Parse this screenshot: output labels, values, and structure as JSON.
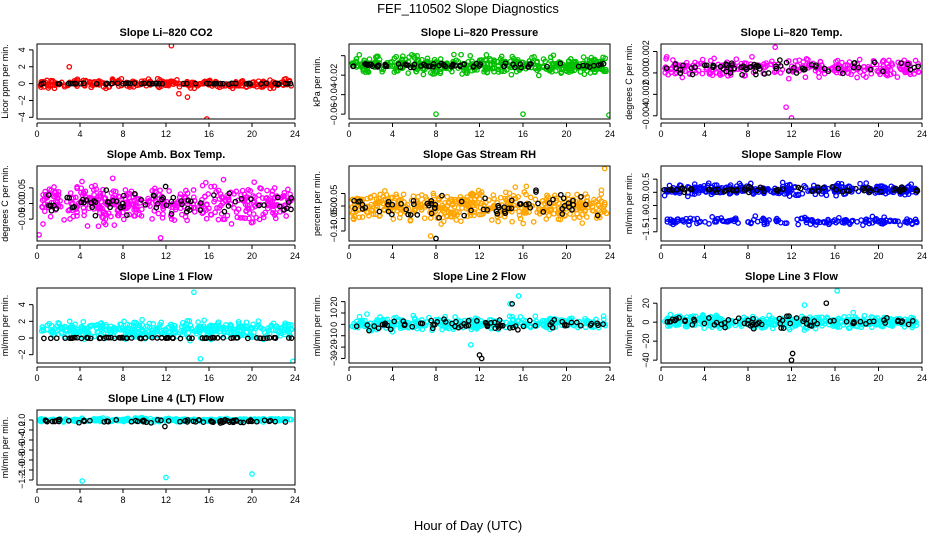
{
  "page": {
    "title": "FEF_110502  Slope Diagnostics",
    "xlabel": "Hour of Day (UTC)"
  },
  "chart_data": [
    {
      "type": "scatter",
      "title": "Slope Li–820 CO2",
      "ylabel": "Licor ppm per min.",
      "xlim": [
        0,
        24
      ],
      "ylim": [
        -4.2,
        4.7
      ],
      "xticks": [
        0,
        4,
        8,
        12,
        16,
        20,
        24
      ],
      "yticks": [
        -4,
        -2,
        0,
        2,
        4
      ],
      "ytick_labels": [
        "−4",
        "−2",
        "0",
        "2",
        "4"
      ],
      "series": [
        {
          "color": "#ff0000",
          "base": 0,
          "spread": 0.45,
          "count": 260,
          "outliers": [
            [
              3.0,
              2.0
            ],
            [
              12.5,
              4.5
            ],
            [
              13.2,
              -1.2
            ],
            [
              14.0,
              -1.6
            ],
            [
              15.8,
              -4.2
            ]
          ]
        },
        {
          "color": "#000000",
          "base": 0,
          "spread": 0.05,
          "count": 60,
          "outliers": []
        }
      ]
    },
    {
      "type": "scatter",
      "title": "Slope Li–820 Pressure",
      "ylabel": "kPa per min.",
      "xlim": [
        0,
        24
      ],
      "ylim": [
        -0.065,
        0.012
      ],
      "xticks": [
        0,
        4,
        8,
        12,
        16,
        20,
        24
      ],
      "yticks": [
        -0.06,
        -0.04,
        -0.02,
        0.0
      ],
      "ytick_labels": [
        "−0.06",
        "−0.04",
        "−0.02",
        ""
      ],
      "series": [
        {
          "color": "#00c000",
          "base": -0.01,
          "spread": 0.008,
          "count": 420,
          "outliers": [
            [
              8.0,
              -0.06
            ],
            [
              16.0,
              -0.06
            ],
            [
              23.9,
              -0.061
            ]
          ]
        },
        {
          "color": "#000000",
          "base": -0.01,
          "spread": 0.002,
          "count": 70,
          "outliers": []
        }
      ]
    },
    {
      "type": "scatter",
      "title": "Slope Li–820 Temp.",
      "ylabel": "degrees C per min.",
      "xlim": [
        0,
        24
      ],
      "ylim": [
        -0.0043,
        0.0027
      ],
      "xticks": [
        0,
        4,
        8,
        12,
        16,
        20,
        24
      ],
      "yticks": [
        -0.004,
        -0.002,
        0.0,
        0.002
      ],
      "ytick_labels": [
        "−0.004",
        "−0.002",
        "0.000",
        "0.002"
      ],
      "series": [
        {
          "color": "#ff00ff",
          "base": 0.0005,
          "spread": 0.0008,
          "count": 260,
          "outliers": [
            [
              12.0,
              -0.0042
            ],
            [
              11.5,
              -0.0032
            ],
            [
              10.5,
              0.0024
            ]
          ]
        },
        {
          "color": "#000000",
          "base": 0.0005,
          "spread": 0.0006,
          "count": 70,
          "outliers": []
        }
      ]
    },
    {
      "type": "scatter",
      "title": "Slope Amb. Box Temp.",
      "ylabel": "degrees C per min.",
      "xlim": [
        0,
        24
      ],
      "ylim": [
        -0.12,
        0.12
      ],
      "xticks": [
        0,
        4,
        8,
        12,
        16,
        20,
        24
      ],
      "yticks": [
        -0.05,
        0.0,
        0.05
      ],
      "ytick_labels": [
        "−0.05",
        "0.00",
        "0.05"
      ],
      "series": [
        {
          "color": "#ff00ff",
          "base": 0,
          "spread": 0.05,
          "count": 420,
          "outliers": [
            [
              0.2,
              -0.1
            ],
            [
              11.5,
              -0.11
            ]
          ]
        },
        {
          "color": "#000000",
          "base": 0,
          "spread": 0.035,
          "count": 70,
          "outliers": []
        }
      ]
    },
    {
      "type": "scatter",
      "title": "Slope Gas Stream RH",
      "ylabel": "percent per min.",
      "xlim": [
        0,
        24
      ],
      "ylim": [
        -0.14,
        0.16
      ],
      "xticks": [
        0,
        4,
        8,
        12,
        16,
        20,
        24
      ],
      "yticks": [
        -0.1,
        -0.05,
        0.0,
        0.05
      ],
      "ytick_labels": [
        "−0.10",
        "−0.05",
        "0.00",
        "0.05"
      ],
      "series": [
        {
          "color": "#ffa500",
          "base": 0,
          "spread": 0.05,
          "count": 460,
          "outliers": [
            [
              23.5,
              0.15
            ],
            [
              7.5,
              -0.12
            ]
          ]
        },
        {
          "color": "#000000",
          "base": 0,
          "spread": 0.04,
          "count": 70,
          "outliers": [
            [
              8.0,
              -0.13
            ]
          ]
        }
      ]
    },
    {
      "type": "scatter",
      "title": "Slope Sample Flow",
      "ylabel": "ml/min per min.",
      "xlim": [
        0,
        24
      ],
      "ylim": [
        -1.85,
        1.0
      ],
      "xticks": [
        0,
        4,
        8,
        12,
        16,
        20,
        24
      ],
      "yticks": [
        -1.5,
        -1.0,
        -0.5,
        0.0,
        0.5
      ],
      "ytick_labels": [
        "−1.5",
        "−1.0",
        "−0.5",
        "0.0",
        "0.5"
      ],
      "series": [
        {
          "color": "#0000ff",
          "base": 0.1,
          "spread": 0.2,
          "count": 300,
          "outliers": []
        },
        {
          "color": "#0000ff",
          "base": -1.1,
          "spread": 0.12,
          "count": 160,
          "outliers": []
        },
        {
          "color": "#000000",
          "base": 0.1,
          "spread": 0.1,
          "count": 70,
          "outliers": []
        }
      ]
    },
    {
      "type": "scatter",
      "title": "Slope Line 1 Flow",
      "ylabel": "ml/min per min.",
      "xlim": [
        0,
        24
      ],
      "ylim": [
        -3.0,
        6.0
      ],
      "xticks": [
        0,
        4,
        8,
        12,
        16,
        20,
        24
      ],
      "yticks": [
        -2,
        0,
        2,
        4
      ],
      "ytick_labels": [
        "−2",
        "0",
        "2",
        "4"
      ],
      "series": [
        {
          "color": "#00ffff",
          "base": 1.0,
          "spread": 0.9,
          "count": 380,
          "outliers": [
            [
              14.6,
              5.5
            ],
            [
              15.2,
              -2.5
            ],
            [
              23.8,
              -2.8
            ]
          ]
        },
        {
          "color": "#000000",
          "base": 0,
          "spread": 0.05,
          "count": 70,
          "outliers": []
        }
      ]
    },
    {
      "type": "scatter",
      "title": "Slope Line 2 Flow",
      "ylabel": "ml/min per min.",
      "xlim": [
        0,
        24
      ],
      "ylim": [
        -34,
        32
      ],
      "xticks": [
        0,
        4,
        8,
        12,
        16,
        20,
        24
      ],
      "yticks": [
        -30,
        -20,
        -10,
        0,
        10,
        20
      ],
      "ytick_labels": [
        "−30",
        "−20",
        "−10",
        "0",
        "10",
        "20"
      ],
      "series": [
        {
          "color": "#00ffff",
          "base": 1,
          "spread": 5,
          "count": 330,
          "outliers": [
            [
              11.2,
              -18
            ],
            [
              15.6,
              25
            ],
            [
              14.8,
              18
            ]
          ]
        },
        {
          "color": "#000000",
          "base": 0,
          "spread": 4,
          "count": 70,
          "outliers": [
            [
              12.0,
              -27
            ],
            [
              12.2,
              -30
            ],
            [
              15.0,
              18
            ]
          ]
        }
      ]
    },
    {
      "type": "scatter",
      "title": "Slope Line 3 Flow",
      "ylabel": "ml/min per min.",
      "xlim": [
        0,
        24
      ],
      "ylim": [
        -43,
        36
      ],
      "xticks": [
        0,
        4,
        8,
        12,
        16,
        20,
        24
      ],
      "yticks": [
        -40,
        -20,
        0,
        20
      ],
      "ytick_labels": [
        "−40",
        "−20",
        "0",
        "20"
      ],
      "series": [
        {
          "color": "#00ffff",
          "base": 0,
          "spread": 6,
          "count": 420,
          "outliers": [
            [
              16.2,
              33
            ],
            [
              13.2,
              18
            ]
          ]
        },
        {
          "color": "#000000",
          "base": 0,
          "spread": 5,
          "count": 70,
          "outliers": [
            [
              12.0,
              -40
            ],
            [
              12.1,
              -33
            ],
            [
              15.2,
              20
            ]
          ]
        }
      ]
    },
    {
      "type": "scatter",
      "title": "Slope Line 4 (LT) Flow",
      "ylabel": "ml/min per min.",
      "xlim": [
        0,
        24
      ],
      "ylim": [
        -1.3,
        0.2
      ],
      "xticks": [
        0,
        4,
        8,
        12,
        16,
        20,
        24
      ],
      "yticks": [
        -1.2,
        -1.0,
        -0.8,
        -0.6,
        -0.4,
        -0.2,
        0.0
      ],
      "ytick_labels": [
        "−1.2",
        "−1.0",
        "−0.8",
        "−0.6",
        "−0.4",
        "−0.2",
        "0.0"
      ],
      "series": [
        {
          "color": "#00ffff",
          "base": 0,
          "spread": 0.03,
          "count": 300,
          "outliers": [
            [
              4.2,
              -1.22
            ],
            [
              12.0,
              -1.15
            ],
            [
              20.0,
              -1.08
            ]
          ]
        },
        {
          "color": "#000000",
          "base": -0.02,
          "spread": 0.03,
          "count": 70,
          "outliers": [
            [
              11.9,
              -0.13
            ]
          ]
        }
      ]
    }
  ]
}
